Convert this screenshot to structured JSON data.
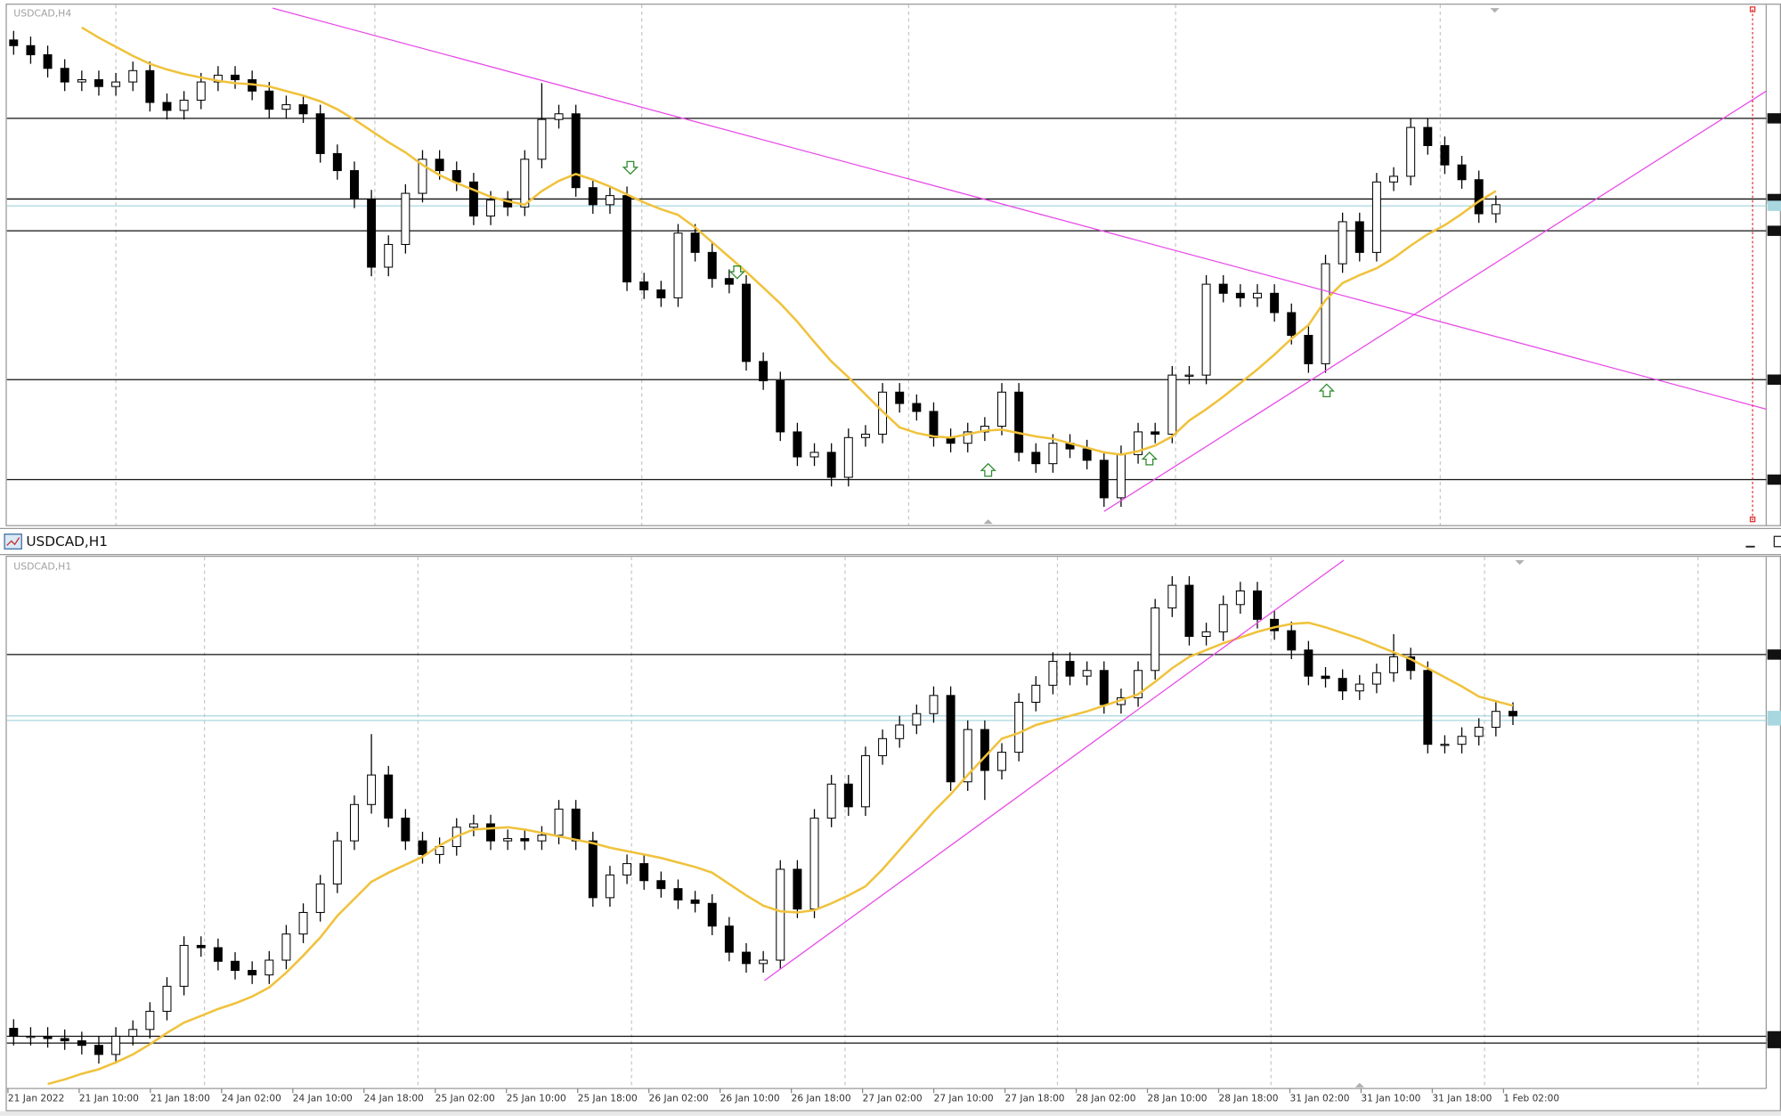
{
  "windows": [
    {
      "label": "USDCAD,H4",
      "chart": {
        "type": "candlestick",
        "ylim": [
          1.2442,
          1.29
        ],
        "up_color": "#ffffff",
        "down_color": "#000000",
        "ma_color": "#f0c23c",
        "open": [
          1.2869,
          1.2864,
          1.2856,
          1.2844,
          1.2832,
          1.2834,
          1.2828,
          1.2832,
          1.2842,
          1.2814,
          1.2807,
          1.2816,
          1.2832,
          1.2838,
          1.2834,
          1.2824,
          1.2808,
          1.2812,
          1.2804,
          1.2769,
          1.2754,
          1.2729,
          1.2669,
          1.2689,
          1.2734,
          1.2764,
          1.2754,
          1.2744,
          1.2714,
          1.2728,
          1.2722,
          1.2764,
          1.2799,
          1.2804,
          1.2739,
          1.2724,
          1.2732,
          1.2656,
          1.2649,
          1.2642,
          1.2699,
          1.2682,
          1.2659,
          1.2654,
          1.2586,
          1.2569,
          1.2524,
          1.2502,
          1.2506,
          1.2484,
          1.2519,
          1.2522,
          1.2559,
          1.2549,
          1.2542,
          1.2519,
          1.2514,
          1.2524,
          1.2529,
          1.2559,
          1.2506,
          1.2496,
          1.2514,
          1.2509,
          1.2499,
          1.2466,
          1.2504,
          1.2524,
          1.2522,
          1.2574,
          1.2574,
          1.2654,
          1.2646,
          1.2642,
          1.2646,
          1.2629,
          1.2609,
          1.2584,
          1.2672,
          1.2709,
          1.2682,
          1.2744,
          1.2749,
          1.2792,
          1.2776,
          1.2759,
          1.2746,
          1.2716
        ],
        "high": [
          1.2877,
          1.2872,
          1.2864,
          1.2852,
          1.2842,
          1.2842,
          1.284,
          1.285,
          1.285,
          1.2822,
          1.2824,
          1.284,
          1.2846,
          1.2846,
          1.2842,
          1.2832,
          1.282,
          1.282,
          1.2812,
          1.2777,
          1.2762,
          1.2737,
          1.2697,
          1.2742,
          1.2772,
          1.2772,
          1.2762,
          1.2752,
          1.2736,
          1.2736,
          1.2772,
          1.2831,
          1.2812,
          1.2812,
          1.2747,
          1.274,
          1.274,
          1.2664,
          1.2657,
          1.2707,
          1.2707,
          1.269,
          1.2667,
          1.2662,
          1.2594,
          1.2577,
          1.2532,
          1.2514,
          1.2514,
          1.2527,
          1.253,
          1.2567,
          1.2567,
          1.2557,
          1.255,
          1.2527,
          1.2532,
          1.2537,
          1.2567,
          1.2567,
          1.2514,
          1.2522,
          1.2522,
          1.2517,
          1.2507,
          1.2512,
          1.2532,
          1.2532,
          1.2582,
          1.2582,
          1.2662,
          1.2662,
          1.2654,
          1.2654,
          1.2654,
          1.2637,
          1.2617,
          1.268,
          1.2717,
          1.2717,
          1.2752,
          1.2757,
          1.28,
          1.28,
          1.2784,
          1.2767,
          1.2754,
          1.2732
        ],
        "low": [
          1.2856,
          1.2848,
          1.2836,
          1.2824,
          1.2824,
          1.282,
          1.282,
          1.2824,
          1.2806,
          1.2799,
          1.2799,
          1.2808,
          1.2824,
          1.2826,
          1.2816,
          1.28,
          1.28,
          1.2796,
          1.2761,
          1.2746,
          1.2721,
          1.2661,
          1.2661,
          1.2681,
          1.2726,
          1.2746,
          1.2736,
          1.2706,
          1.2706,
          1.2714,
          1.2714,
          1.2756,
          1.2791,
          1.2731,
          1.2716,
          1.2716,
          1.2648,
          1.2641,
          1.2634,
          1.2634,
          1.2674,
          1.2651,
          1.2646,
          1.2578,
          1.2561,
          1.2516,
          1.2494,
          1.2494,
          1.2476,
          1.2476,
          1.2511,
          1.2514,
          1.2541,
          1.2534,
          1.2511,
          1.2506,
          1.2506,
          1.2516,
          1.2521,
          1.2498,
          1.2488,
          1.2488,
          1.2501,
          1.2491,
          1.2458,
          1.2458,
          1.2496,
          1.2514,
          1.2514,
          1.2566,
          1.2566,
          1.2638,
          1.2634,
          1.2634,
          1.2621,
          1.2601,
          1.2576,
          1.2576,
          1.2664,
          1.2674,
          1.2674,
          1.2736,
          1.2741,
          1.2768,
          1.2751,
          1.2738,
          1.2708,
          1.2708
        ],
        "close": [
          1.2864,
          1.2856,
          1.2844,
          1.2832,
          1.2834,
          1.2828,
          1.2832,
          1.2842,
          1.2814,
          1.2807,
          1.2816,
          1.2832,
          1.2838,
          1.2834,
          1.2824,
          1.2808,
          1.2812,
          1.2804,
          1.2769,
          1.2754,
          1.2729,
          1.2669,
          1.2689,
          1.2734,
          1.2764,
          1.2754,
          1.2744,
          1.2714,
          1.2728,
          1.2722,
          1.2764,
          1.2799,
          1.2804,
          1.2739,
          1.2724,
          1.2732,
          1.2656,
          1.2649,
          1.2642,
          1.2699,
          1.2682,
          1.2659,
          1.2654,
          1.2586,
          1.2569,
          1.2524,
          1.2502,
          1.2506,
          1.2484,
          1.2519,
          1.2522,
          1.2559,
          1.2549,
          1.2542,
          1.2519,
          1.2514,
          1.2524,
          1.2529,
          1.2559,
          1.2506,
          1.2496,
          1.2514,
          1.2509,
          1.2499,
          1.2466,
          1.2504,
          1.2524,
          1.2522,
          1.2574,
          1.2574,
          1.2654,
          1.2646,
          1.2642,
          1.2646,
          1.2629,
          1.2609,
          1.2584,
          1.2672,
          1.2709,
          1.2682,
          1.2744,
          1.2749,
          1.2792,
          1.2776,
          1.2759,
          1.2746,
          1.2716,
          1.2724
        ],
        "ma": [
          null,
          null,
          null,
          null,
          1.288,
          1.2871,
          1.2863,
          1.2855,
          1.2848,
          1.2843,
          1.2839,
          1.2836,
          1.2833,
          1.2831,
          1.283,
          1.2828,
          1.2824,
          1.282,
          1.2815,
          1.2808,
          1.2799,
          1.2789,
          1.2779,
          1.277,
          1.2759,
          1.275,
          1.2743,
          1.2737,
          1.2731,
          1.2727,
          1.2724,
          1.2736,
          1.2745,
          1.2751,
          1.2746,
          1.274,
          1.2733,
          1.2726,
          1.272,
          1.2715,
          1.2704,
          1.2691,
          1.2678,
          1.2665,
          1.2651,
          1.2637,
          1.2621,
          1.2603,
          1.2586,
          1.2572,
          1.2557,
          1.2542,
          1.2528,
          1.2523,
          1.252,
          1.2519,
          1.2522,
          1.2525,
          1.2526,
          1.2523,
          1.252,
          1.2518,
          1.2514,
          1.251,
          1.2506,
          1.2504,
          1.2507,
          1.2512,
          1.252,
          1.2534,
          1.2544,
          1.2555,
          1.2567,
          1.2579,
          1.2592,
          1.2606,
          1.2618,
          1.264,
          1.2655,
          1.2662,
          1.2668,
          1.2677,
          1.2688,
          1.2698,
          1.2706,
          1.2716,
          1.2727,
          1.2736
        ],
        "levels": [
          1.28,
          1.2729,
          1.2701,
          1.257,
          1.2482
        ],
        "bid": 1.2723
      }
    },
    {
      "caption": "USDCAD,H1",
      "label": "USDCAD,H1",
      "chart": {
        "type": "candlestick",
        "ylim": [
          1.2566,
          1.28
        ],
        "up_color": "#ffffff",
        "down_color": "#000000",
        "ma_color": "#f0c23c",
        "open": [
          1.25925,
          1.2589,
          1.2589,
          1.2588,
          1.2587,
          1.2585,
          1.2581,
          1.2589,
          1.2592,
          1.26,
          1.2611,
          1.2629,
          1.2628,
          1.2622,
          1.2618,
          1.2616,
          1.26225,
          1.2634,
          1.26435,
          1.2656,
          1.2675,
          1.2691,
          1.2704,
          1.2685,
          1.2675,
          1.2669,
          1.26725,
          1.2681,
          1.26825,
          1.2675,
          1.2676,
          1.2675,
          1.26775,
          1.2689,
          1.2675,
          1.265,
          1.266,
          1.2665,
          1.26575,
          1.2654,
          1.2649,
          1.26475,
          1.26375,
          1.2626,
          1.2621,
          1.26225,
          1.26625,
          1.2645,
          1.2685,
          1.27,
          1.269,
          1.27125,
          1.272,
          1.2726,
          1.2731,
          1.2739,
          1.2701,
          1.2724,
          1.2706,
          1.2714,
          1.2736,
          1.27435,
          1.2754,
          1.27475,
          1.275,
          1.2735,
          1.2738,
          1.275,
          1.27775,
          1.27875,
          1.2765,
          1.2767,
          1.2779,
          1.2785,
          1.27725,
          1.27675,
          1.2759,
          1.27475,
          1.27465,
          1.2741,
          1.2744,
          1.2749,
          1.2756,
          1.275,
          1.27175,
          1.27175,
          1.2721,
          1.2725,
          1.2732
        ],
        "high": [
          1.25965,
          1.2593,
          1.2593,
          1.2592,
          1.2591,
          1.2589,
          1.2593,
          1.2596,
          1.2604,
          1.2615,
          1.2633,
          1.2633,
          1.2632,
          1.2626,
          1.2622,
          1.26265,
          1.2638,
          1.26475,
          1.266,
          1.2679,
          1.2695,
          1.2722,
          1.2708,
          1.2689,
          1.2679,
          1.26765,
          1.2685,
          1.26865,
          1.26865,
          1.268,
          1.268,
          1.26815,
          1.2693,
          1.2693,
          1.2679,
          1.2664,
          1.2669,
          1.2669,
          1.26615,
          1.2658,
          1.2653,
          1.26515,
          1.26415,
          1.263,
          1.26265,
          1.26665,
          1.26665,
          1.2689,
          1.2704,
          1.2704,
          1.27165,
          1.2724,
          1.273,
          1.2735,
          1.2743,
          1.2743,
          1.2728,
          1.2728,
          1.2718,
          1.274,
          1.27475,
          1.2758,
          1.2758,
          1.2754,
          1.2754,
          1.2742,
          1.2754,
          1.27815,
          1.27915,
          1.27915,
          1.2771,
          1.2783,
          1.2789,
          1.2789,
          1.27765,
          1.27715,
          1.2763,
          1.27515,
          1.27505,
          1.2748,
          1.2753,
          1.2766,
          1.276,
          1.2754,
          1.27215,
          1.2725,
          1.2729,
          1.2736,
          1.2736
        ],
        "low": [
          1.2585,
          1.2585,
          1.2584,
          1.2583,
          1.2581,
          1.2577,
          1.2577,
          1.2585,
          1.2588,
          1.2596,
          1.2607,
          1.2624,
          1.2618,
          1.2614,
          1.2612,
          1.2612,
          1.26185,
          1.263,
          1.26395,
          1.2652,
          1.2671,
          1.2687,
          1.2681,
          1.2671,
          1.2665,
          1.2665,
          1.26685,
          1.2677,
          1.2671,
          1.2671,
          1.2671,
          1.2671,
          1.26735,
          1.2671,
          1.2646,
          1.2646,
          1.2656,
          1.26535,
          1.265,
          1.2645,
          1.26435,
          1.26335,
          1.2622,
          1.2617,
          1.2617,
          1.26185,
          1.2641,
          1.2641,
          1.2681,
          1.2686,
          1.2686,
          1.27085,
          1.2716,
          1.2722,
          1.2727,
          1.2697,
          1.2697,
          1.2693,
          1.2702,
          1.271,
          1.2732,
          1.27395,
          1.27435,
          1.27435,
          1.2731,
          1.2731,
          1.2734,
          1.2746,
          1.27735,
          1.2761,
          1.2761,
          1.2763,
          1.2775,
          1.27685,
          1.27635,
          1.2755,
          1.27435,
          1.27425,
          1.2737,
          1.2737,
          1.274,
          1.2745,
          1.2746,
          1.27135,
          1.27135,
          1.27135,
          1.2717,
          1.2721,
          1.2726
        ],
        "close": [
          1.2589,
          1.2589,
          1.2588,
          1.2587,
          1.2585,
          1.2581,
          1.2589,
          1.2592,
          1.26,
          1.2611,
          1.2629,
          1.2628,
          1.2622,
          1.2618,
          1.2616,
          1.26225,
          1.2634,
          1.26435,
          1.2656,
          1.2675,
          1.2691,
          1.2704,
          1.2685,
          1.2675,
          1.2669,
          1.26725,
          1.2681,
          1.26825,
          1.2675,
          1.2676,
          1.2675,
          1.26775,
          1.2689,
          1.2675,
          1.265,
          1.266,
          1.2665,
          1.26575,
          1.2654,
          1.2649,
          1.26475,
          1.26375,
          1.2626,
          1.2621,
          1.26225,
          1.26625,
          1.2645,
          1.2685,
          1.27,
          1.269,
          1.27125,
          1.272,
          1.2726,
          1.2731,
          1.2739,
          1.2701,
          1.2724,
          1.2706,
          1.2714,
          1.2736,
          1.27435,
          1.2754,
          1.27475,
          1.275,
          1.2735,
          1.2738,
          1.275,
          1.27775,
          1.27875,
          1.2765,
          1.2767,
          1.2779,
          1.2785,
          1.27725,
          1.27675,
          1.2759,
          1.27475,
          1.27465,
          1.2741,
          1.2744,
          1.2749,
          1.2756,
          1.275,
          1.27175,
          1.27175,
          1.2721,
          1.2725,
          1.2732,
          1.273
        ],
        "ma": [
          null,
          null,
          1.2568,
          1.257,
          1.25725,
          1.25745,
          1.25775,
          1.2581,
          1.25855,
          1.25905,
          1.2595,
          1.2598,
          1.2601,
          1.26035,
          1.26065,
          1.26105,
          1.2617,
          1.26245,
          1.26325,
          1.2642,
          1.26495,
          1.2657,
          1.2661,
          1.26645,
          1.2668,
          1.2673,
          1.2677,
          1.268,
          1.26805,
          1.2681,
          1.268,
          1.26785,
          1.2677,
          1.26755,
          1.2674,
          1.2672,
          1.26705,
          1.2669,
          1.26675,
          1.26655,
          1.26635,
          1.2661,
          1.2656,
          1.2651,
          1.26465,
          1.2644,
          1.26435,
          1.26445,
          1.26475,
          1.2651,
          1.2655,
          1.26625,
          1.2671,
          1.26795,
          1.2688,
          1.26955,
          1.2704,
          1.2712,
          1.272,
          1.27225,
          1.2726,
          1.2728,
          1.273,
          1.2732,
          1.27345,
          1.2737,
          1.27395,
          1.2745,
          1.2751,
          1.2756,
          1.2759,
          1.2762,
          1.27645,
          1.2767,
          1.2769,
          1.27705,
          1.2771,
          1.2769,
          1.27665,
          1.2764,
          1.2761,
          1.2758,
          1.2755,
          1.2751,
          1.2747,
          1.2743,
          1.27385,
          1.27365,
          1.27345
        ],
        "levels": [
          1.2757,
          1.2589,
          1.2586
        ],
        "bid": 1.2728,
        "ask": 1.273,
        "time_labels": [
          "21 Jan 2022",
          "21 Jan 10:00",
          "21 Jan 18:00",
          "24 Jan 02:00",
          "24 Jan 10:00",
          "24 Jan 18:00",
          "25 Jan 02:00",
          "25 Jan 10:00",
          "25 Jan 18:00",
          "26 Jan 02:00",
          "26 Jan 10:00",
          "26 Jan 18:00",
          "27 Jan 02:00",
          "27 Jan 10:00",
          "27 Jan 18:00",
          "28 Jan 02:00",
          "28 Jan 10:00",
          "28 Jan 18:00",
          "31 Jan 02:00",
          "31 Jan 10:00",
          "31 Jan 18:00",
          "1 Feb 02:00"
        ]
      }
    }
  ]
}
